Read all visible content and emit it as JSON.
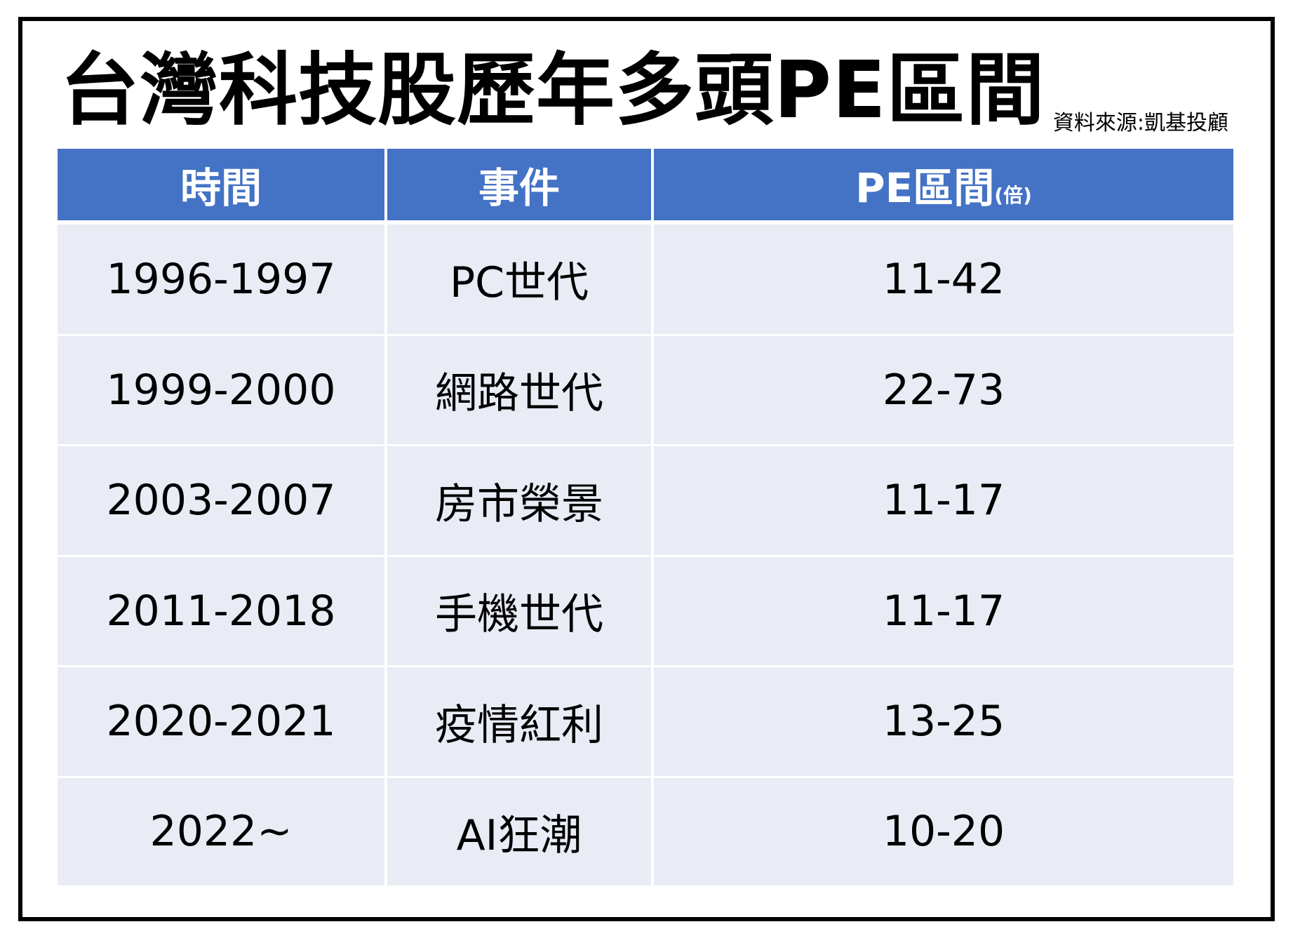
{
  "title": "台灣科技股歷年多頭PE區間",
  "source": "資料來源:凱基投顧",
  "colors": {
    "header_bg": "#4472c4",
    "row_bg": "#e9ebf5",
    "highlight": "#e00000"
  },
  "table": {
    "headers": {
      "time": "時間",
      "event": "事件",
      "pe": "PE區間",
      "pe_unit": "(倍)"
    },
    "rows": [
      {
        "period": "1996-1997",
        "event": "PC世代",
        "pe_range": "11-42"
      },
      {
        "period": "1999-2000",
        "event": "網路世代",
        "pe_range": "22-73"
      },
      {
        "period": "2003-2007",
        "event": "房市榮景",
        "pe_range": "11-17"
      },
      {
        "period": "2011-2018",
        "event": "手機世代",
        "pe_range": "11-17"
      },
      {
        "period": "2020-2021",
        "event": "疫情紅利",
        "pe_range": "13-25"
      },
      {
        "period": "2022~",
        "event": "AI狂潮",
        "pe_range": "10-20",
        "highlighted": true
      }
    ]
  }
}
